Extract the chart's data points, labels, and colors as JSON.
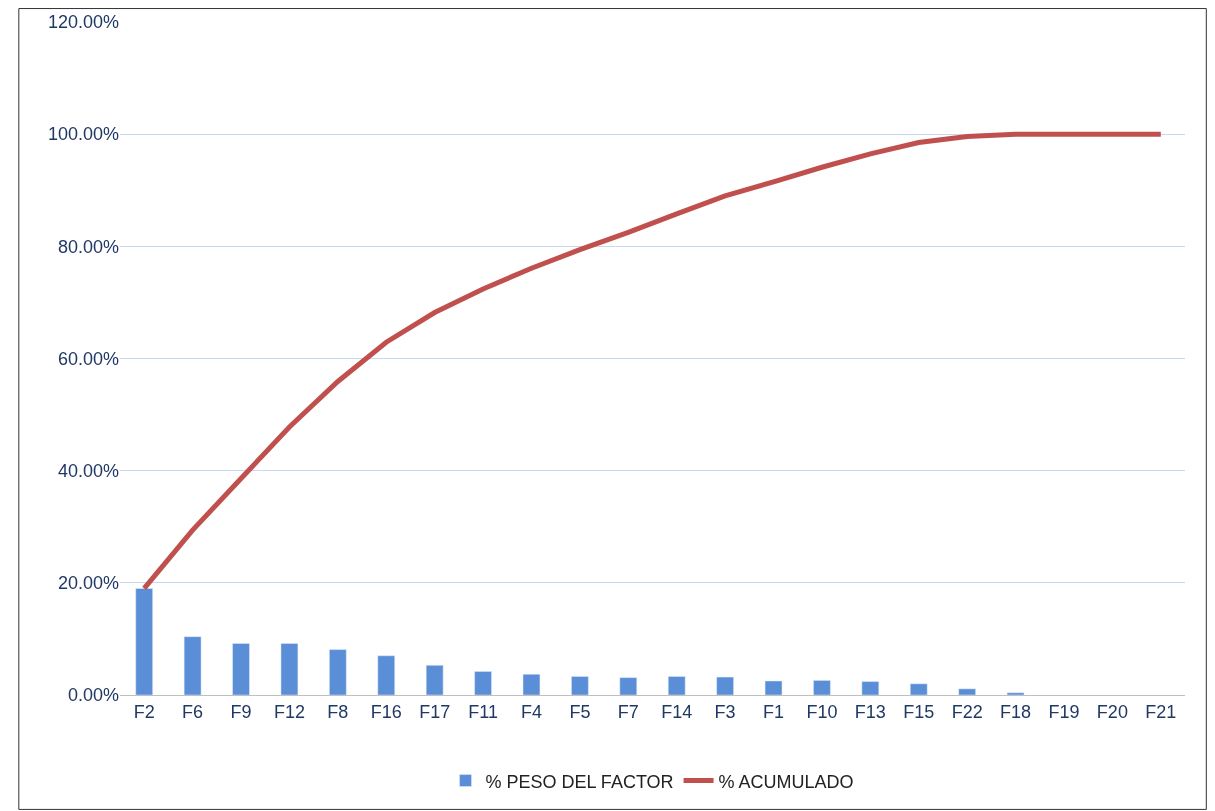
{
  "chart_data": {
    "type": "bar",
    "categories": [
      "F2",
      "F6",
      "F9",
      "F12",
      "F8",
      "F16",
      "F17",
      "F11",
      "F4",
      "F5",
      "F7",
      "F14",
      "F3",
      "F1",
      "F10",
      "F13",
      "F15",
      "F22",
      "F18",
      "F19",
      "F20",
      "F21"
    ],
    "series": [
      {
        "name": "% PESO DEL FACTOR",
        "color": "#5a8fd8",
        "values": [
          19.0,
          10.4,
          9.2,
          9.2,
          8.1,
          7.0,
          5.3,
          4.2,
          3.7,
          3.3,
          3.1,
          3.3,
          3.2,
          2.5,
          2.6,
          2.4,
          2.0,
          1.1,
          0.4,
          null,
          null,
          null
        ]
      },
      {
        "name": "% ACUMULADO",
        "type": "line",
        "color": "#c0504d",
        "values": [
          19.0,
          29.4,
          38.6,
          47.8,
          55.9,
          62.9,
          68.2,
          72.4,
          76.1,
          79.4,
          82.5,
          85.8,
          89.0,
          91.5,
          94.1,
          96.5,
          98.5,
          99.6,
          100,
          100,
          100,
          100
        ]
      }
    ],
    "ylim": [
      0,
      120
    ],
    "yticks": [
      {
        "value": 0,
        "label": "0.00%"
      },
      {
        "value": 20,
        "label": "20.00%"
      },
      {
        "value": 40,
        "label": "40.00%"
      },
      {
        "value": 60,
        "label": "60.00%"
      },
      {
        "value": 80,
        "label": "80.00%"
      },
      {
        "value": 100,
        "label": "100.00%"
      },
      {
        "value": 120,
        "label": "120.00%"
      }
    ],
    "grid": "y",
    "legend": "bottom"
  }
}
